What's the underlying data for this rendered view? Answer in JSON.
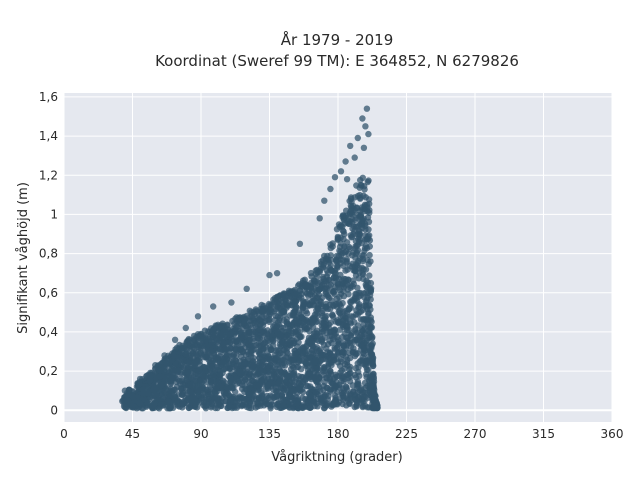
{
  "chart_data": {
    "type": "scatter",
    "title_line1": "År 1979 - 2019",
    "title_line2": "Koordinat (Sweref 99 TM): E 364852, N 6279826",
    "xlabel": "Vågriktning (grader)",
    "ylabel": "Signifikant våghöjd (m)",
    "xlim": [
      0,
      360
    ],
    "ylim": [
      -0.06,
      1.62
    ],
    "x_ticks": [
      0,
      45,
      90,
      135,
      180,
      225,
      270,
      315,
      360
    ],
    "x_tick_labels": [
      "0",
      "45",
      "90",
      "135",
      "180",
      "225",
      "270",
      "315",
      "360"
    ],
    "y_ticks": [
      0,
      0.2,
      0.4,
      0.6,
      0.8,
      1.0,
      1.2,
      1.4,
      1.6
    ],
    "y_tick_labels": [
      "0",
      "0,2",
      "0,4",
      "0,6",
      "0,8",
      "1",
      "1,2",
      "1,4",
      "1,6"
    ],
    "grid": true,
    "marker_color": "#33566e",
    "background_color": "#e5e8ef",
    "envelope": {
      "description": "upper envelope of the dense point cloud (direction, max height)",
      "x": [
        38,
        45,
        55,
        65,
        75,
        85,
        95,
        105,
        115,
        125,
        135,
        145,
        155,
        165,
        172,
        178,
        183,
        188,
        192,
        196,
        198,
        200,
        201,
        202,
        204,
        206
      ],
      "y": [
        0.09,
        0.12,
        0.18,
        0.26,
        0.33,
        0.38,
        0.42,
        0.45,
        0.48,
        0.52,
        0.56,
        0.6,
        0.65,
        0.72,
        0.8,
        0.9,
        1.0,
        1.08,
        1.15,
        1.2,
        1.22,
        1.2,
        1.05,
        0.5,
        0.1,
        0.02
      ]
    },
    "outliers": [
      {
        "x": 199,
        "y": 1.54
      },
      {
        "x": 196,
        "y": 1.49
      },
      {
        "x": 198,
        "y": 1.45
      },
      {
        "x": 200,
        "y": 1.41
      },
      {
        "x": 193,
        "y": 1.39
      },
      {
        "x": 188,
        "y": 1.35
      },
      {
        "x": 197,
        "y": 1.34
      },
      {
        "x": 191,
        "y": 1.29
      },
      {
        "x": 185,
        "y": 1.27
      },
      {
        "x": 182,
        "y": 1.22
      },
      {
        "x": 178,
        "y": 1.19
      },
      {
        "x": 186,
        "y": 1.18
      },
      {
        "x": 175,
        "y": 1.13
      },
      {
        "x": 171,
        "y": 1.07
      },
      {
        "x": 168,
        "y": 0.98
      },
      {
        "x": 155,
        "y": 0.85
      },
      {
        "x": 140,
        "y": 0.7
      },
      {
        "x": 135,
        "y": 0.69
      },
      {
        "x": 120,
        "y": 0.62
      },
      {
        "x": 110,
        "y": 0.55
      },
      {
        "x": 98,
        "y": 0.53
      },
      {
        "x": 88,
        "y": 0.48
      },
      {
        "x": 80,
        "y": 0.42
      },
      {
        "x": 73,
        "y": 0.36
      },
      {
        "x": 66,
        "y": 0.28
      },
      {
        "x": 60,
        "y": 0.23
      },
      {
        "x": 50,
        "y": 0.16
      },
      {
        "x": 40,
        "y": 0.1
      },
      {
        "x": 42,
        "y": 0.08
      }
    ]
  }
}
